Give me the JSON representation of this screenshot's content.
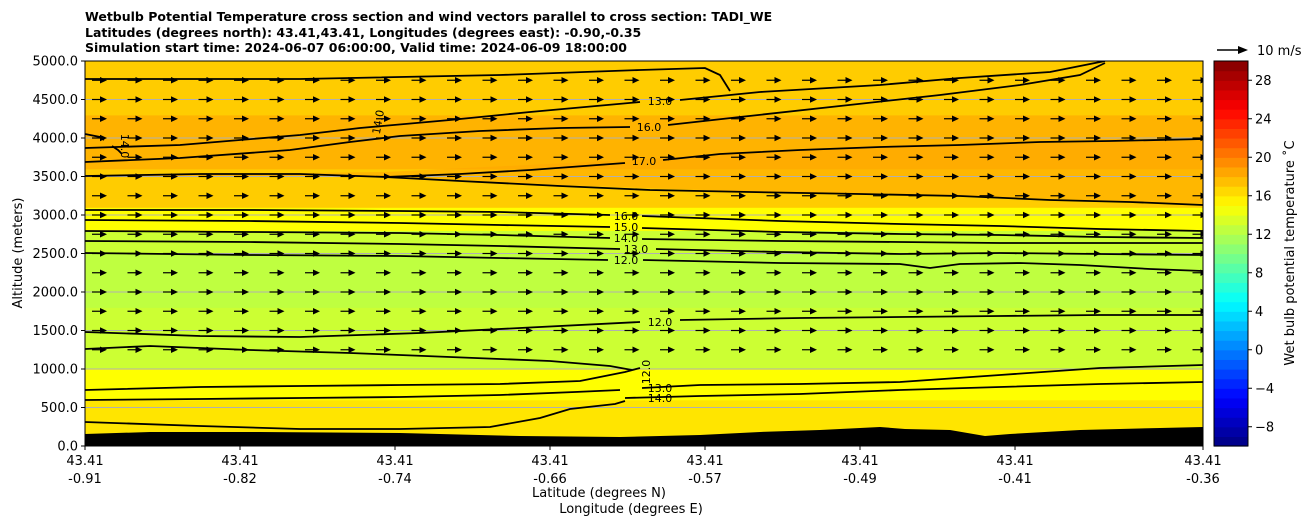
{
  "title_lines": [
    "Wetbulb Potential Temperature cross section and wind vectors parallel to cross section: TADI_WE",
    "Latitudes (degrees north): 43.41,43.41, Longitudes (degrees east): -0.90,-0.35",
    "Simulation start time: 2024-06-07 06:00:00, Valid time: 2024-06-09 18:00:00"
  ],
  "chart_data": {
    "type": "heatmap",
    "variable": "Wetbulb potential temperature",
    "ylabel": "Altitude (meters)",
    "xlabel_lines": [
      "Latitude (degrees N)",
      "Longitude (degrees E)"
    ],
    "ylim": [
      0,
      5000
    ],
    "y_ticks": [
      "0.0",
      "500.0",
      "1000.0",
      "1500.0",
      "2000.0",
      "2500.0",
      "3000.0",
      "3500.0",
      "4000.0",
      "4500.0",
      "5000.0"
    ],
    "x_ticks": [
      {
        "lat": "43.41",
        "lon": "-0.91"
      },
      {
        "lat": "43.41",
        "lon": "-0.82"
      },
      {
        "lat": "43.41",
        "lon": "-0.74"
      },
      {
        "lat": "43.41",
        "lon": "-0.66"
      },
      {
        "lat": "43.41",
        "lon": "-0.57"
      },
      {
        "lat": "43.41",
        "lon": "-0.49"
      },
      {
        "lat": "43.41",
        "lon": "-0.41"
      },
      {
        "lat": "43.41",
        "lon": "-0.36"
      }
    ],
    "grid": true,
    "colorbar": {
      "label": "Wet bulb potential temperature ˚C",
      "colormap": "jet",
      "range": [
        -10,
        30
      ],
      "ticks": [
        "−8",
        "−4",
        "0",
        "4",
        "8",
        "12",
        "16",
        "20",
        "24",
        "28"
      ]
    },
    "fill_levels_by_altitude": [
      {
        "altitude_m": 0,
        "value": 16
      },
      {
        "altitude_m": 600,
        "value": 15
      },
      {
        "altitude_m": 1000,
        "value": 13
      },
      {
        "altitude_m": 1800,
        "value": 12.5
      },
      {
        "altitude_m": 2500,
        "value": 13
      },
      {
        "altitude_m": 2800,
        "value": 15
      },
      {
        "altitude_m": 3100,
        "value": 17
      },
      {
        "altitude_m": 3600,
        "value": 18
      },
      {
        "altitude_m": 4300,
        "value": 17
      },
      {
        "altitude_m": 5000,
        "value": 16.5
      }
    ],
    "contour_labels": [
      "13.0",
      "16.0",
      "17.0",
      "14.0",
      "16.0",
      "15.0",
      "14.0",
      "13.0",
      "12.0",
      "12.0",
      "12.0",
      "13.0",
      "14.0",
      "14.0"
    ],
    "wind_vector_key": "10 m/s",
    "terrain_color": "#000000"
  }
}
